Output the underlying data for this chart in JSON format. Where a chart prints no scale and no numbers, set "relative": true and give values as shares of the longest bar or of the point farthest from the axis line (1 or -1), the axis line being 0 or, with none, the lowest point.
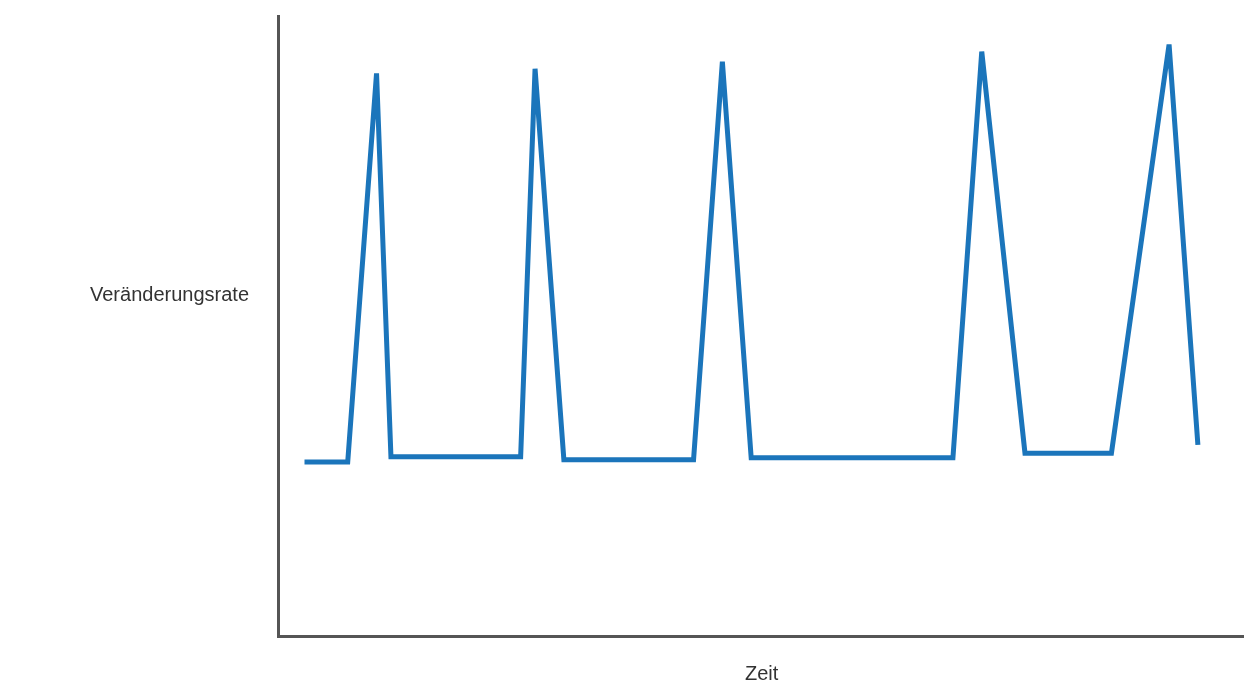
{
  "chart_data": {
    "type": "line",
    "relative": true,
    "xlabel": "Zeit",
    "ylabel": "Veränderungsrate",
    "categories": [
      null,
      null,
      null,
      null,
      null,
      null,
      null,
      null,
      null,
      null,
      null,
      null,
      null,
      null,
      null,
      null,
      null,
      null,
      null,
      null,
      null,
      null,
      null,
      null,
      null,
      null,
      null,
      null,
      null,
      null,
      null,
      null,
      null,
      null,
      null,
      null,
      null,
      null,
      null,
      null,
      null,
      null,
      null,
      null,
      null,
      null,
      null,
      null,
      null,
      null,
      null,
      null,
      null,
      null,
      null,
      null,
      null,
      null,
      null,
      null,
      null,
      null,
      null
    ],
    "series": [
      {
        "color": "#1b75bb",
        "values": [
          0.293,
          null,
          null,
          0.293,
          null,
          0.951,
          0.302,
          null,
          null,
          null,
          null,
          null,
          null,
          null,
          null,
          0.302,
          0.959,
          null,
          0.297,
          null,
          null,
          null,
          null,
          null,
          null,
          null,
          null,
          0.297,
          null,
          0.971,
          null,
          0.3,
          null,
          null,
          null,
          null,
          null,
          null,
          null,
          null,
          null,
          null,
          null,
          null,
          null,
          0.3,
          null,
          0.988,
          null,
          null,
          0.308,
          null,
          null,
          null,
          null,
          null,
          0.308,
          null,
          null,
          null,
          1.0,
          null,
          0.322
        ]
      }
    ],
    "marker": "none",
    "line_style": "solid"
  }
}
